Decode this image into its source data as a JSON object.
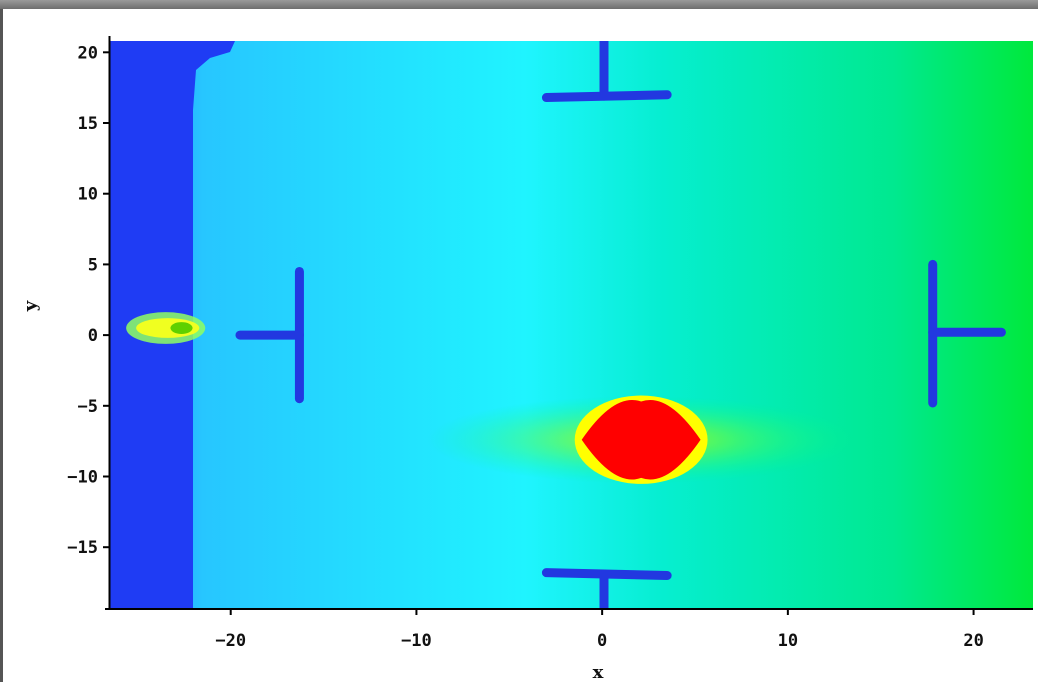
{
  "chart_data": {
    "type": "heatmap",
    "xlabel": "x",
    "ylabel": "y",
    "xlim": [
      -26.5,
      23.2
    ],
    "ylim": [
      -19.3,
      20.8
    ],
    "x_ticks": [
      -20,
      -10,
      0,
      10,
      20
    ],
    "y_ticks": [
      20,
      15,
      10,
      5,
      0,
      -5,
      -10,
      -15
    ],
    "colormap": [
      "#1818ff",
      "#2a7cff",
      "#20f0ff",
      "#00e9a0",
      "#00e63c",
      "#ffff00",
      "#ff0000"
    ],
    "features": [
      {
        "kind": "hot-ellipse",
        "center": [
          2.1,
          -7.4
        ],
        "rx": 3.2,
        "ry": 2.7
      },
      {
        "kind": "small-hotspot",
        "center": [
          -23.5,
          0.5
        ],
        "rx": 1.7,
        "ry": 0.7
      },
      {
        "kind": "t-bar",
        "segments": [
          [
            [
              -3.0,
              16.8
            ],
            [
              3.5,
              17.0
            ]
          ],
          [
            [
              0.1,
              20.8
            ],
            [
              0.1,
              16.9
            ]
          ]
        ]
      },
      {
        "kind": "t-bar",
        "segments": [
          [
            [
              -3.0,
              -16.8
            ],
            [
              3.5,
              -17.0
            ]
          ],
          [
            [
              0.1,
              -16.9
            ],
            [
              0.1,
              -19.3
            ]
          ]
        ]
      },
      {
        "kind": "t-bar",
        "segments": [
          [
            [
              -19.5,
              0.0
            ],
            [
              -16.3,
              0.0
            ]
          ],
          [
            [
              -16.3,
              4.5
            ],
            [
              -16.3,
              -4.5
            ]
          ]
        ]
      },
      {
        "kind": "t-bar",
        "segments": [
          [
            [
              17.8,
              5.0
            ],
            [
              17.8,
              -4.8
            ]
          ],
          [
            [
              17.8,
              0.2
            ],
            [
              21.5,
              0.2
            ]
          ]
        ]
      }
    ]
  }
}
